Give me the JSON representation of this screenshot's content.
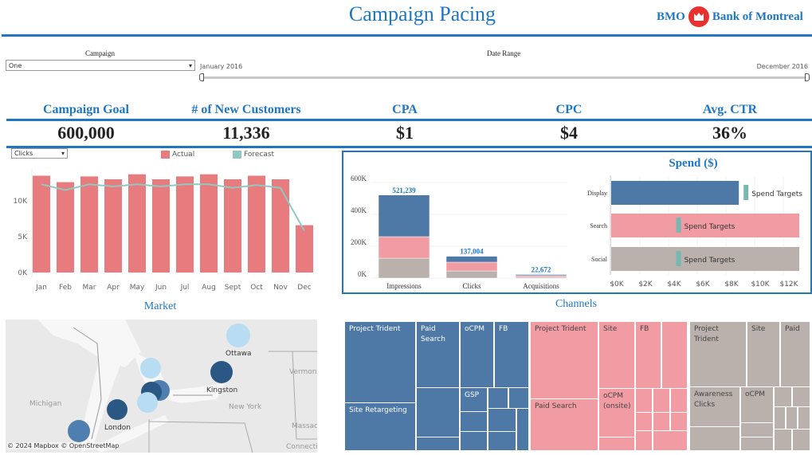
{
  "header": {
    "title": "Campaign Pacing",
    "logo_left": "BMO",
    "logo_right": "Bank of Montreal"
  },
  "filters": {
    "campaign_label": "Campaign",
    "campaign_value": "One",
    "date_range_label": "Date Range",
    "date_start": "January 2016",
    "date_end": "December 2016"
  },
  "kpis": [
    {
      "label": "Campaign Goal",
      "value": "600,000"
    },
    {
      "label": "# of New Customers",
      "value": "11,336"
    },
    {
      "label": "CPA",
      "value": "$1"
    },
    {
      "label": "CPC",
      "value": "$4"
    },
    {
      "label": "Avg. CTR",
      "value": "36%"
    }
  ],
  "colors": {
    "accent": "#1f77c4",
    "actual": "#e77b7d",
    "forecast": "#8fc9c2",
    "display": "#4e79a7",
    "search": "#f19ba2",
    "social": "#bab0ac",
    "target": "#76b7b2"
  },
  "chart_data": [
    {
      "type": "bar",
      "metric_select": "Clicks",
      "legend": [
        "Actual",
        "Forecast"
      ],
      "categories": [
        "Jan",
        "Feb",
        "Mar",
        "Apr",
        "May",
        "Jun",
        "Jul",
        "Aug",
        "Sept",
        "Oct",
        "Nov",
        "Dec"
      ],
      "y_ticks": [
        "0K",
        "5K",
        "10K"
      ],
      "ylim": [
        0,
        14500
      ],
      "series": [
        {
          "name": "Actual",
          "type": "bar",
          "values": [
            13500,
            12600,
            13400,
            13000,
            13700,
            13000,
            13400,
            13700,
            13000,
            13500,
            13000,
            6600
          ]
        },
        {
          "name": "Forecast",
          "type": "line",
          "values": [
            12300,
            11500,
            12300,
            12000,
            12300,
            12000,
            12300,
            12300,
            11800,
            12200,
            11800,
            5800
          ]
        }
      ]
    },
    {
      "type": "bar",
      "stacked": true,
      "categories": [
        "Impressions",
        "Clicks",
        "Acquisitions"
      ],
      "y_ticks": [
        "0K",
        "200K",
        "400K",
        "600K"
      ],
      "ylim": [
        0,
        600000
      ],
      "totals": [
        "521,239",
        "137,004",
        "22,672"
      ],
      "series": [
        {
          "color_key": "social",
          "values": [
            125000,
            45000,
            8000
          ]
        },
        {
          "color_key": "search",
          "values": [
            135000,
            55000,
            8000
          ]
        },
        {
          "color_key": "display",
          "values": [
            261239,
            37004,
            6672
          ]
        }
      ]
    },
    {
      "type": "bar",
      "orientation": "horizontal",
      "title": "Spend ($)",
      "categories": [
        "Display",
        "Search",
        "Social"
      ],
      "x_ticks": [
        "$0K",
        "$2K",
        "$4K",
        "$6K",
        "$8K",
        "$10K",
        "$12K"
      ],
      "xlim": [
        0,
        13300
      ],
      "values": [
        8900,
        13300,
        13300
      ],
      "targets": [
        9400,
        4700,
        4700
      ],
      "target_label": "Spend Targets"
    }
  ],
  "market": {
    "title": "Market",
    "cities": [
      "Ottawa",
      "Kingston",
      "London"
    ],
    "regions": [
      "Michigan",
      "New York",
      "Vermont",
      "Massach",
      "Connecticut"
    ],
    "attribution": "© 2024 Mapbox  © OpenStreetMap"
  },
  "channels": {
    "title": "Channels",
    "display": [
      "Project Trident",
      "Site Retargeting",
      "Paid Search",
      "oCPM",
      "FB",
      "GSP"
    ],
    "search": [
      "Project Trident",
      "Paid Search",
      "Site",
      "FB",
      "oCPM (onsite)"
    ],
    "social": [
      "Project Trident",
      "Site",
      "Paid",
      "Awareness Clicks",
      "oCPM"
    ]
  }
}
